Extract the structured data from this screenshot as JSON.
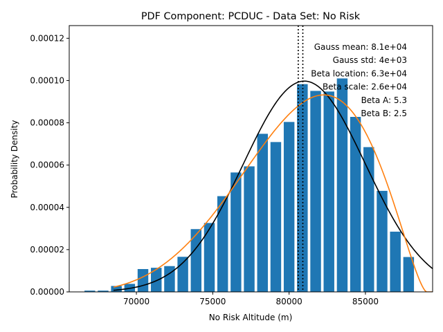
{
  "chart_data": {
    "type": "bar",
    "title": "PDF Component: PCDUC - Data Set: No Risk",
    "xlabel": "No Risk Altitude (m)",
    "ylabel": "Probability Density",
    "xlim": [
      65600,
      89400
    ],
    "ylim": [
      0,
      0.000126
    ],
    "grid": false,
    "legend": "none",
    "bar_width": 700,
    "bar_color": "#1f77b4",
    "x_ticks": [
      {
        "value": 70000,
        "label": "70000"
      },
      {
        "value": 75000,
        "label": "75000"
      },
      {
        "value": 80000,
        "label": "80000"
      },
      {
        "value": 85000,
        "label": "85000"
      }
    ],
    "y_ticks": [
      {
        "value": 0,
        "label": "0.00000"
      },
      {
        "value": 2e-05,
        "label": "0.00002"
      },
      {
        "value": 4e-05,
        "label": "0.00004"
      },
      {
        "value": 6e-05,
        "label": "0.00006"
      },
      {
        "value": 8e-05,
        "label": "0.00008"
      },
      {
        "value": 0.0001,
        "label": "0.00010"
      },
      {
        "value": 0.00012,
        "label": "0.00012"
      }
    ],
    "bars": [
      {
        "x": 66950,
        "y": 6e-07
      },
      {
        "x": 67820,
        "y": 6e-07
      },
      {
        "x": 68690,
        "y": 2.8e-06
      },
      {
        "x": 69560,
        "y": 3.8e-06
      },
      {
        "x": 70430,
        "y": 1.08e-05
      },
      {
        "x": 71300,
        "y": 1.14e-05
      },
      {
        "x": 72170,
        "y": 1.22e-05
      },
      {
        "x": 73040,
        "y": 1.66e-05
      },
      {
        "x": 73910,
        "y": 2.97e-05
      },
      {
        "x": 74780,
        "y": 3.26e-05
      },
      {
        "x": 75650,
        "y": 4.53e-05
      },
      {
        "x": 76520,
        "y": 5.65e-05
      },
      {
        "x": 77390,
        "y": 5.94e-05
      },
      {
        "x": 78260,
        "y": 7.48e-05
      },
      {
        "x": 79130,
        "y": 7.09e-05
      },
      {
        "x": 80000,
        "y": 8.04e-05
      },
      {
        "x": 80870,
        "y": 9.83e-05
      },
      {
        "x": 81740,
        "y": 9.51e-05
      },
      {
        "x": 82610,
        "y": 9.48e-05
      },
      {
        "x": 83480,
        "y": 0.000101
      },
      {
        "x": 84350,
        "y": 8.28e-05
      },
      {
        "x": 85220,
        "y": 6.85e-05
      },
      {
        "x": 86090,
        "y": 4.78e-05
      },
      {
        "x": 86960,
        "y": 2.85e-05
      },
      {
        "x": 87830,
        "y": 1.65e-05
      }
    ],
    "gauss": {
      "mean": 81000,
      "std": 4000,
      "color": "#000000"
    },
    "beta": {
      "loc": 63000,
      "scale": 26000,
      "a": 5.3,
      "b": 2.5,
      "color": "#ff7f0e"
    },
    "vlines": [
      {
        "x": 80600,
        "style": "dotted",
        "color": "#000000"
      },
      {
        "x": 80900,
        "style": "dotted",
        "color": "#000000"
      }
    ],
    "annotations": [
      "Gauss mean: 8.1e+04",
      "Gauss std: 4e+03",
      "Beta location: 6.3e+04",
      "Beta scale: 2.6e+04",
      "Beta A: 5.3",
      "Beta B: 2.5"
    ]
  }
}
